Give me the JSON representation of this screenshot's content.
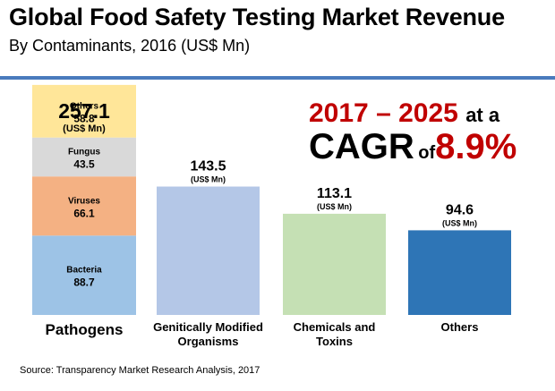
{
  "title": "Global Food Safety Testing Market Revenue",
  "subtitle": "By Contaminants, 2016 (US$ Mn)",
  "cagr": {
    "years": "2017 – 2025",
    "at_a": "at a",
    "label": "CAGR",
    "of": "of",
    "value": "8.9%"
  },
  "source": "Source: Transparency Market Research Analysis, 2017",
  "chart_data": {
    "type": "bar",
    "unit": "(US$ Mn)",
    "categories": [
      "Pathogens",
      "Genitically Modified Organisms",
      "Chemicals and Toxins",
      "Others"
    ],
    "values": [
      257.1,
      143.5,
      113.1,
      94.6
    ],
    "value_labels": [
      "257.1",
      "143.5",
      "113.1",
      "94.6"
    ],
    "stacked_breakdown": {
      "category": "Pathogens",
      "segments": [
        {
          "name": "Bacteria",
          "value": 88.7,
          "label": "88.7",
          "color": "#9dc3e6"
        },
        {
          "name": "Viruses",
          "value": 66.1,
          "label": "66.1",
          "color": "#f4b183"
        },
        {
          "name": "Fungus",
          "value": 43.5,
          "label": "43.5",
          "color": "#d9d9d9"
        },
        {
          "name": "Others",
          "value": 58.8,
          "label": "58.8",
          "color": "#ffe699"
        }
      ]
    },
    "colors": [
      "#b4c7e7",
      "#c5e0b4",
      "#2e75b6"
    ],
    "ylim": [
      0,
      257.1
    ]
  }
}
